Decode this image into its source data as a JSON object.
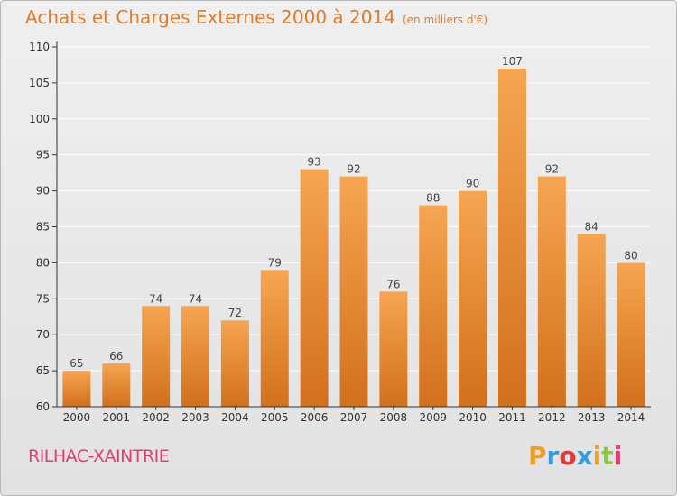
{
  "header": {
    "title": "Achats et Charges Externes 2000 à 2014",
    "unit": "(en milliers d'€)"
  },
  "footer": {
    "commune": "RILHAC-XAINTRIE",
    "logo_letters": [
      "P",
      "r",
      "o",
      "x",
      "i",
      "t",
      "i"
    ],
    "logo_colors": [
      "#f0a020",
      "#3a9ad9",
      "#e03c3c",
      "#3a9ad9",
      "#f0a020",
      "#8cc63f",
      "#e03c78"
    ]
  },
  "colors": {
    "bar_top": "#f6a551",
    "bar_bottom": "#d2701c",
    "title": "#e07d2a",
    "commune": "#e03c78",
    "grid": "#ffffff",
    "axis": "#333333"
  },
  "chart_data": {
    "type": "bar",
    "title": "Achats et Charges Externes 2000 à 2014",
    "subtitle": "(en milliers d'€)",
    "categories": [
      "2000",
      "2001",
      "2002",
      "2003",
      "2004",
      "2005",
      "2006",
      "2007",
      "2008",
      "2009",
      "2010",
      "2011",
      "2012",
      "2013",
      "2014"
    ],
    "values": [
      65,
      66,
      74,
      74,
      72,
      79,
      93,
      92,
      76,
      88,
      90,
      107,
      92,
      84,
      80
    ],
    "ylim": [
      60,
      110
    ],
    "yticks": [
      60,
      65,
      70,
      75,
      80,
      85,
      90,
      95,
      100,
      105,
      110
    ],
    "grid": true,
    "data_labels": true
  }
}
